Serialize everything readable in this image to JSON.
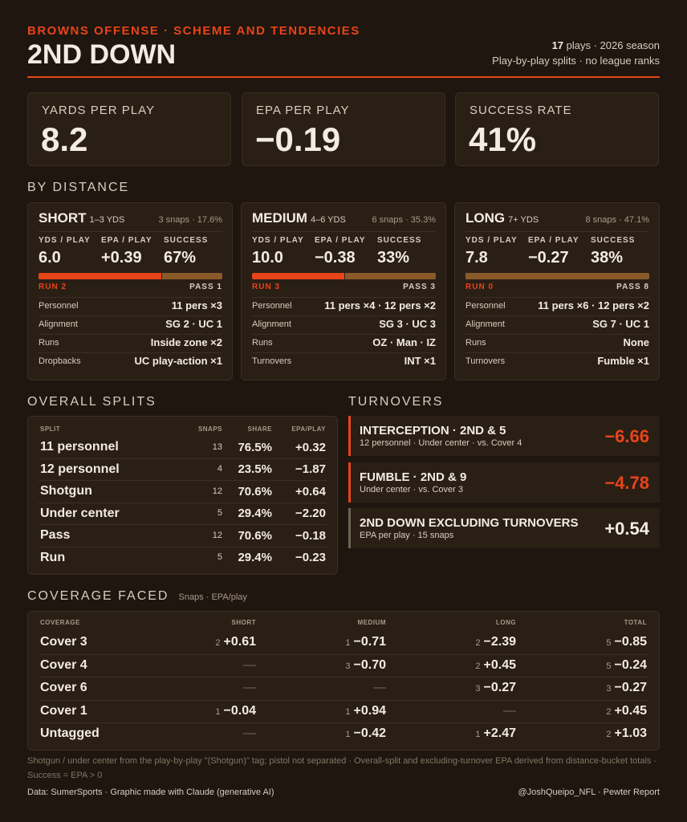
{
  "header": {
    "kicker": "BROWNS OFFENSE · SCHEME AND TENDENCIES",
    "title": "2ND DOWN",
    "plays_count": "17",
    "plays_text": " plays · 2026 season",
    "note": "Play-by-play splits · no league ranks"
  },
  "kpis": [
    {
      "label": "YARDS PER PLAY",
      "value": "8.2"
    },
    {
      "label": "EPA PER PLAY",
      "value": "−0.19"
    },
    {
      "label": "SUCCESS RATE",
      "value": "41%"
    }
  ],
  "by_distance": {
    "title": "BY DISTANCE",
    "run_color": "#e8441a",
    "pass_color": "#8a5a2b",
    "buckets": [
      {
        "name": "SHORT",
        "range": "1–3 YDS",
        "snaps": "3 snaps · 17.6%",
        "stats": [
          {
            "label": "YDS / PLAY",
            "value": "6.0"
          },
          {
            "label": "EPA / PLAY",
            "value": "+0.39"
          },
          {
            "label": "SUCCESS",
            "value": "67%"
          }
        ],
        "run": {
          "label": "RUN 2",
          "value": 2
        },
        "pass": {
          "label": "PASS 1",
          "value": 1
        },
        "rows": [
          [
            "Personnel",
            "11 pers ×3"
          ],
          [
            "Alignment",
            "SG 2 · UC 1"
          ],
          [
            "Runs",
            "Inside zone ×2"
          ],
          [
            "Dropbacks",
            "UC play-action ×1"
          ]
        ]
      },
      {
        "name": "MEDIUM",
        "range": "4–6 YDS",
        "snaps": "6 snaps · 35.3%",
        "stats": [
          {
            "label": "YDS / PLAY",
            "value": "10.0"
          },
          {
            "label": "EPA / PLAY",
            "value": "−0.38"
          },
          {
            "label": "SUCCESS",
            "value": "33%"
          }
        ],
        "run": {
          "label": "RUN 3",
          "value": 3
        },
        "pass": {
          "label": "PASS 3",
          "value": 3
        },
        "rows": [
          [
            "Personnel",
            "11 pers ×4 · 12 pers ×2"
          ],
          [
            "Alignment",
            "SG 3 · UC 3"
          ],
          [
            "Runs",
            "OZ · Man · IZ"
          ],
          [
            "Turnovers",
            "INT ×1"
          ]
        ]
      },
      {
        "name": "LONG",
        "range": "7+ YDS",
        "snaps": "8 snaps · 47.1%",
        "stats": [
          {
            "label": "YDS / PLAY",
            "value": "7.8"
          },
          {
            "label": "EPA / PLAY",
            "value": "−0.27"
          },
          {
            "label": "SUCCESS",
            "value": "38%"
          }
        ],
        "run": {
          "label": "RUN 0",
          "value": 0
        },
        "pass": {
          "label": "PASS 8",
          "value": 8
        },
        "rows": [
          [
            "Personnel",
            "11 pers ×6 · 12 pers ×2"
          ],
          [
            "Alignment",
            "SG 7 · UC 1"
          ],
          [
            "Runs",
            "None"
          ],
          [
            "Turnovers",
            "Fumble ×1"
          ]
        ]
      }
    ]
  },
  "overall_splits": {
    "title": "OVERALL SPLITS",
    "headers": [
      "SPLIT",
      "SNAPS",
      "SHARE",
      "EPA/PLAY"
    ],
    "rows": [
      [
        "11 personnel",
        "13",
        "76.5%",
        "+0.32"
      ],
      [
        "12 personnel",
        "4",
        "23.5%",
        "−1.87"
      ],
      [
        "Shotgun",
        "12",
        "70.6%",
        "+0.64"
      ],
      [
        "Under center",
        "5",
        "29.4%",
        "−2.20"
      ],
      [
        "Pass",
        "12",
        "70.6%",
        "−0.18"
      ],
      [
        "Run",
        "5",
        "29.4%",
        "−0.23"
      ]
    ]
  },
  "turnovers": {
    "title": "TURNOVERS",
    "items": [
      {
        "title": "INTERCEPTION · 2ND & 5",
        "sub": "12 personnel · Under center · vs. Cover 4",
        "value": "−6.66",
        "color": "#e8441a"
      },
      {
        "title": "FUMBLE · 2ND & 9",
        "sub": "Under center · vs. Cover 3",
        "value": "−4.78",
        "color": "#e8441a"
      },
      {
        "title": "2ND DOWN EXCLUDING TURNOVERS",
        "sub": "EPA per play · 15 snaps",
        "value": "+0.54",
        "color": "#f3ece4"
      }
    ]
  },
  "coverage": {
    "title": "COVERAGE FACED",
    "subtitle": "Snaps · EPA/play",
    "headers": [
      "COVERAGE",
      "SHORT",
      "MEDIUM",
      "LONG",
      "TOTAL"
    ],
    "rows": [
      {
        "name": "Cover 3",
        "cells": [
          {
            "snaps": "2",
            "epa": "+0.61"
          },
          {
            "snaps": "1",
            "epa": "−0.71"
          },
          {
            "snaps": "2",
            "epa": "−2.39"
          },
          {
            "snaps": "5",
            "epa": "−0.85"
          }
        ]
      },
      {
        "name": "Cover 4",
        "cells": [
          {
            "epa": "—"
          },
          {
            "snaps": "3",
            "epa": "−0.70"
          },
          {
            "snaps": "2",
            "epa": "+0.45"
          },
          {
            "snaps": "5",
            "epa": "−0.24"
          }
        ]
      },
      {
        "name": "Cover 6",
        "cells": [
          {
            "epa": "—"
          },
          {
            "epa": "—"
          },
          {
            "snaps": "3",
            "epa": "−0.27"
          },
          {
            "snaps": "3",
            "epa": "−0.27"
          }
        ]
      },
      {
        "name": "Cover 1",
        "cells": [
          {
            "snaps": "1",
            "epa": "−0.04"
          },
          {
            "snaps": "1",
            "epa": "+0.94"
          },
          {
            "epa": "—"
          },
          {
            "snaps": "2",
            "epa": "+0.45"
          }
        ]
      },
      {
        "name": "Untagged",
        "cells": [
          {
            "epa": "—"
          },
          {
            "snaps": "1",
            "epa": "−0.42"
          },
          {
            "snaps": "1",
            "epa": "+2.47"
          },
          {
            "snaps": "2",
            "epa": "+1.03"
          }
        ]
      }
    ]
  },
  "footnote": "Shotgun / under center from the play-by-play \"(Shotgun)\" tag; pistol not separated · Overall-split and excluding-turnover EPA derived from distance-bucket totals · Success = EPA > 0",
  "footer": {
    "left": "Data: SumerSports · Graphic made with Claude (generative AI)",
    "right": "@JoshQueipo_NFL · Pewter Report"
  }
}
